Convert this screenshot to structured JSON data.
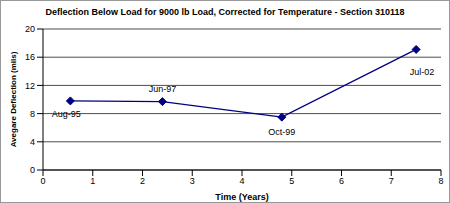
{
  "chart_data": {
    "type": "line",
    "title": "Deflection Below Load for 9000 lb Load, Corrected for Temperature - Section 310118",
    "x_label": "Time (Years)",
    "y_label": "Avegare Deflection (mils)",
    "x": [
      0.55,
      2.4,
      4.8,
      7.5
    ],
    "values": [
      9.8,
      9.7,
      7.5,
      17.1
    ],
    "point_labels": [
      "Aug-95",
      "Jun-97",
      "Oct-99",
      "Jul-02"
    ],
    "color": "#000080",
    "marker": "diamond",
    "line_style": "solid",
    "xlim": [
      0,
      8
    ],
    "xticks": [
      0,
      1,
      2,
      3,
      4,
      5,
      6,
      7,
      8
    ],
    "ylim": [
      0,
      20
    ],
    "yticks": [
      0,
      4,
      8,
      12,
      16,
      20
    ],
    "grid": true
  }
}
